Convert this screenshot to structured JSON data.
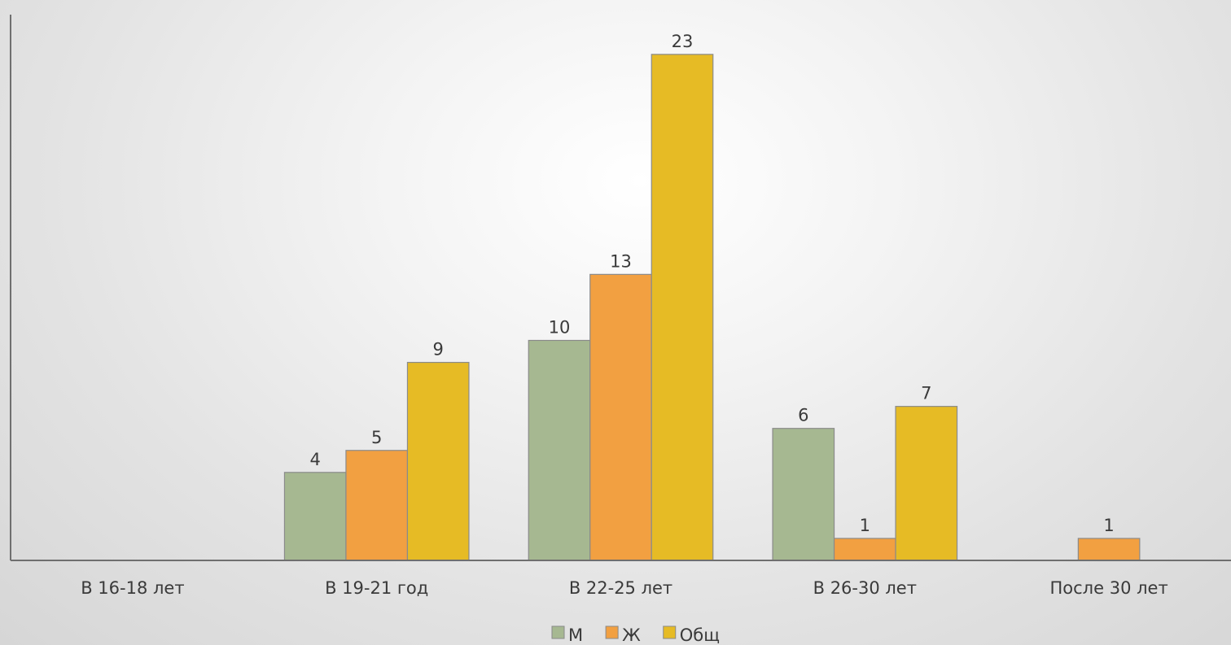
{
  "chart_data": {
    "type": "bar",
    "title": "",
    "xlabel": "",
    "ylabel": "",
    "categories": [
      "В 16-18 лет",
      "В 19-21 год",
      "В 22-25 лет",
      "В 26-30 лет",
      "После 30 лет"
    ],
    "series": [
      {
        "name": "М",
        "color": "#a6b891",
        "values": [
          null,
          4,
          10,
          6,
          null
        ]
      },
      {
        "name": "Ж",
        "color": "#f2a041",
        "values": [
          null,
          5,
          13,
          1,
          1
        ]
      },
      {
        "name": "Общ",
        "color": "#e6bb25",
        "values": [
          null,
          9,
          23,
          7,
          null
        ]
      }
    ],
    "ylim": [
      0,
      25
    ],
    "grid": false,
    "legend": "bottom-center",
    "data_labels": true
  }
}
